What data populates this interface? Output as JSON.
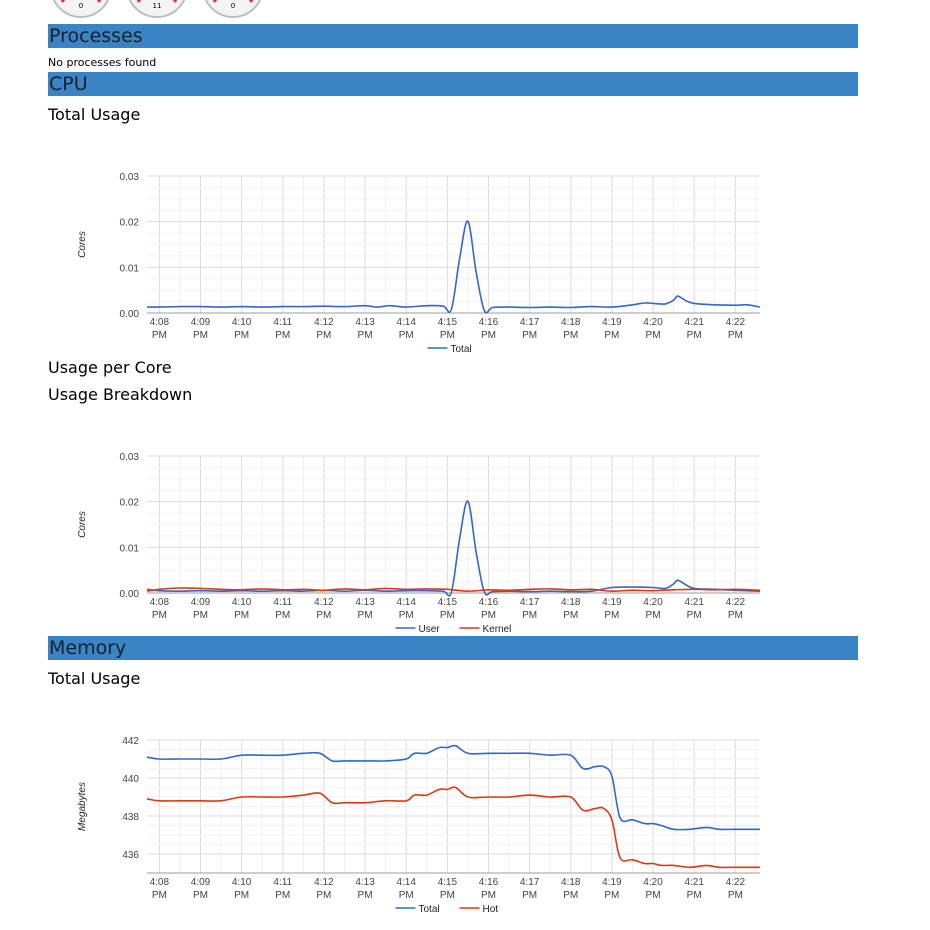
{
  "gauges": [
    {
      "value": "0"
    },
    {
      "value": "11"
    },
    {
      "value": "0"
    }
  ],
  "sections": {
    "processes": {
      "title": "Processes",
      "empty_text": "No processes found"
    },
    "cpu": {
      "title": "CPU",
      "total_usage": "Total Usage",
      "per_core": "Usage per Core",
      "breakdown": "Usage Breakdown"
    },
    "memory": {
      "title": "Memory",
      "total_usage": "Total Usage"
    }
  },
  "colors": {
    "section_bar": "#3a84c5",
    "blue": "#3366cc",
    "red": "#dc3912",
    "grid": "#e6e6e6"
  },
  "chart_data": [
    {
      "type": "line",
      "ylabel": "Cores",
      "ylim": [
        0,
        0.03
      ],
      "yticks": [
        "0.00",
        "0.01",
        "0.02",
        "0.03"
      ],
      "xticks": [
        "4:08 PM",
        "4:09 PM",
        "4:10 PM",
        "4:11 PM",
        "4:12 PM",
        "4:13 PM",
        "4:14 PM",
        "4:15 PM",
        "4:16 PM",
        "4:17 PM",
        "4:18 PM",
        "4:19 PM",
        "4:20 PM",
        "4:21 PM",
        "4:22 PM"
      ],
      "xlim": [
        7.7,
        22.6
      ],
      "legend": "bottom",
      "series": [
        {
          "name": "Total",
          "color": "#3366cc",
          "x": [
            7.7,
            8.0,
            8.5,
            9.0,
            9.5,
            10.0,
            10.5,
            11.0,
            11.5,
            12.0,
            12.5,
            13.0,
            13.3,
            13.6,
            14.0,
            14.5,
            14.9,
            15.1,
            15.3,
            15.5,
            15.7,
            15.9,
            16.1,
            16.5,
            17.0,
            17.5,
            18.0,
            18.5,
            19.0,
            19.5,
            19.8,
            20.0,
            20.3,
            20.5,
            20.6,
            20.8,
            21.0,
            21.5,
            22.0,
            22.3,
            22.6
          ],
          "y": [
            0.0013,
            0.0013,
            0.0014,
            0.0014,
            0.0013,
            0.0014,
            0.0013,
            0.0014,
            0.0014,
            0.0015,
            0.0014,
            0.0016,
            0.0013,
            0.0016,
            0.0013,
            0.0016,
            0.0015,
            0.0008,
            0.012,
            0.0201,
            0.009,
            0.0005,
            0.0012,
            0.0013,
            0.0012,
            0.0013,
            0.0012,
            0.0014,
            0.0013,
            0.0018,
            0.0022,
            0.0021,
            0.002,
            0.0028,
            0.0037,
            0.0027,
            0.0021,
            0.0018,
            0.0017,
            0.0018,
            0.0013
          ]
        }
      ]
    },
    {
      "type": "line",
      "ylabel": "Cores",
      "ylim": [
        0,
        0.03
      ],
      "yticks": [
        "0.00",
        "0.01",
        "0.02",
        "0.03"
      ],
      "xticks": [
        "4:08 PM",
        "4:09 PM",
        "4:10 PM",
        "4:11 PM",
        "4:12 PM",
        "4:13 PM",
        "4:14 PM",
        "4:15 PM",
        "4:16 PM",
        "4:17 PM",
        "4:18 PM",
        "4:19 PM",
        "4:20 PM",
        "4:21 PM",
        "4:22 PM"
      ],
      "xlim": [
        7.7,
        22.6
      ],
      "legend": "bottom",
      "series": [
        {
          "name": "User",
          "color": "#3366cc",
          "x": [
            7.7,
            8.0,
            8.5,
            9.0,
            9.5,
            10.0,
            10.5,
            11.0,
            11.5,
            12.0,
            12.5,
            13.0,
            13.5,
            14.0,
            14.5,
            14.9,
            15.1,
            15.3,
            15.5,
            15.7,
            15.9,
            16.1,
            16.5,
            17.0,
            17.5,
            18.0,
            18.5,
            19.0,
            19.5,
            20.0,
            20.3,
            20.5,
            20.6,
            20.8,
            21.0,
            21.5,
            22.0,
            22.6
          ],
          "y": [
            0.0008,
            0.0005,
            0.0004,
            0.0005,
            0.0004,
            0.0005,
            0.0004,
            0.0005,
            0.0004,
            0.0006,
            0.0004,
            0.0006,
            0.0004,
            0.0005,
            0.0005,
            0.0004,
            0.0002,
            0.012,
            0.0201,
            0.009,
            0.0002,
            0.0003,
            0.0004,
            0.0003,
            0.0004,
            0.0003,
            0.0004,
            0.0012,
            0.0013,
            0.0012,
            0.001,
            0.002,
            0.0028,
            0.0018,
            0.001,
            0.0008,
            0.0006,
            0.0004
          ]
        },
        {
          "name": "Kernel",
          "color": "#dc3912",
          "x": [
            7.7,
            8.0,
            8.5,
            9.0,
            9.5,
            10.0,
            10.5,
            11.0,
            11.5,
            12.0,
            12.5,
            13.0,
            13.5,
            14.0,
            14.5,
            15.0,
            15.5,
            16.0,
            16.5,
            17.0,
            17.5,
            18.0,
            18.5,
            19.0,
            19.5,
            20.0,
            20.5,
            21.0,
            21.5,
            22.0,
            22.6
          ],
          "y": [
            0.0004,
            0.0008,
            0.0011,
            0.001,
            0.0008,
            0.0007,
            0.0009,
            0.0007,
            0.0008,
            0.0006,
            0.0009,
            0.0007,
            0.001,
            0.0008,
            0.0009,
            0.0008,
            0.0004,
            0.0007,
            0.0006,
            0.0008,
            0.0009,
            0.0007,
            0.0008,
            0.0004,
            0.0006,
            0.0005,
            0.0007,
            0.0008,
            0.0007,
            0.0008,
            0.0006
          ]
        }
      ]
    },
    {
      "type": "line",
      "ylabel": "Megabytes",
      "ylim": [
        435,
        442
      ],
      "yticks": [
        "436",
        "438",
        "440",
        "442"
      ],
      "xticks": [
        "4:08 PM",
        "4:09 PM",
        "4:10 PM",
        "4:11 PM",
        "4:12 PM",
        "4:13 PM",
        "4:14 PM",
        "4:15 PM",
        "4:16 PM",
        "4:17 PM",
        "4:18 PM",
        "4:19 PM",
        "4:20 PM",
        "4:21 PM",
        "4:22 PM"
      ],
      "xlim": [
        7.7,
        22.6
      ],
      "legend": "bottom",
      "series": [
        {
          "name": "Total",
          "color": "#3366cc",
          "x": [
            7.7,
            8.0,
            8.5,
            9.0,
            9.5,
            10.0,
            10.5,
            11.0,
            11.5,
            11.9,
            12.2,
            12.5,
            13.0,
            13.5,
            14.0,
            14.2,
            14.5,
            14.8,
            15.0,
            15.2,
            15.5,
            16.0,
            16.5,
            17.0,
            17.5,
            18.0,
            18.3,
            18.6,
            18.8,
            19.0,
            19.2,
            19.5,
            19.8,
            20.0,
            20.2,
            20.5,
            20.9,
            21.3,
            21.6,
            22.0,
            22.6
          ],
          "y": [
            441.1,
            441.0,
            441.0,
            441.0,
            441.0,
            441.2,
            441.2,
            441.2,
            441.3,
            441.3,
            440.9,
            440.9,
            440.9,
            440.9,
            441.0,
            441.3,
            441.3,
            441.6,
            441.6,
            441.7,
            441.3,
            441.3,
            441.3,
            441.3,
            441.2,
            441.2,
            440.5,
            440.6,
            440.6,
            440.1,
            437.9,
            437.8,
            437.6,
            437.6,
            437.5,
            437.3,
            437.3,
            437.4,
            437.3,
            437.3,
            437.3
          ]
        },
        {
          "name": "Hot",
          "color": "#dc3912",
          "x": [
            7.7,
            8.0,
            8.5,
            9.0,
            9.5,
            10.0,
            10.5,
            11.0,
            11.5,
            11.9,
            12.2,
            12.5,
            13.0,
            13.5,
            14.0,
            14.2,
            14.5,
            14.8,
            15.0,
            15.2,
            15.5,
            16.0,
            16.5,
            17.0,
            17.5,
            18.0,
            18.3,
            18.6,
            18.8,
            19.0,
            19.2,
            19.5,
            19.8,
            20.0,
            20.2,
            20.5,
            20.9,
            21.3,
            21.6,
            22.0,
            22.6
          ],
          "y": [
            438.9,
            438.8,
            438.8,
            438.8,
            438.8,
            439.0,
            439.0,
            439.0,
            439.1,
            439.2,
            438.7,
            438.7,
            438.7,
            438.8,
            438.8,
            439.1,
            439.1,
            439.4,
            439.4,
            439.5,
            439.0,
            439.0,
            439.0,
            439.1,
            439.0,
            439.0,
            438.3,
            438.4,
            438.4,
            437.8,
            435.8,
            435.7,
            435.5,
            435.5,
            435.4,
            435.4,
            435.3,
            435.4,
            435.3,
            435.3,
            435.3
          ]
        }
      ]
    }
  ]
}
